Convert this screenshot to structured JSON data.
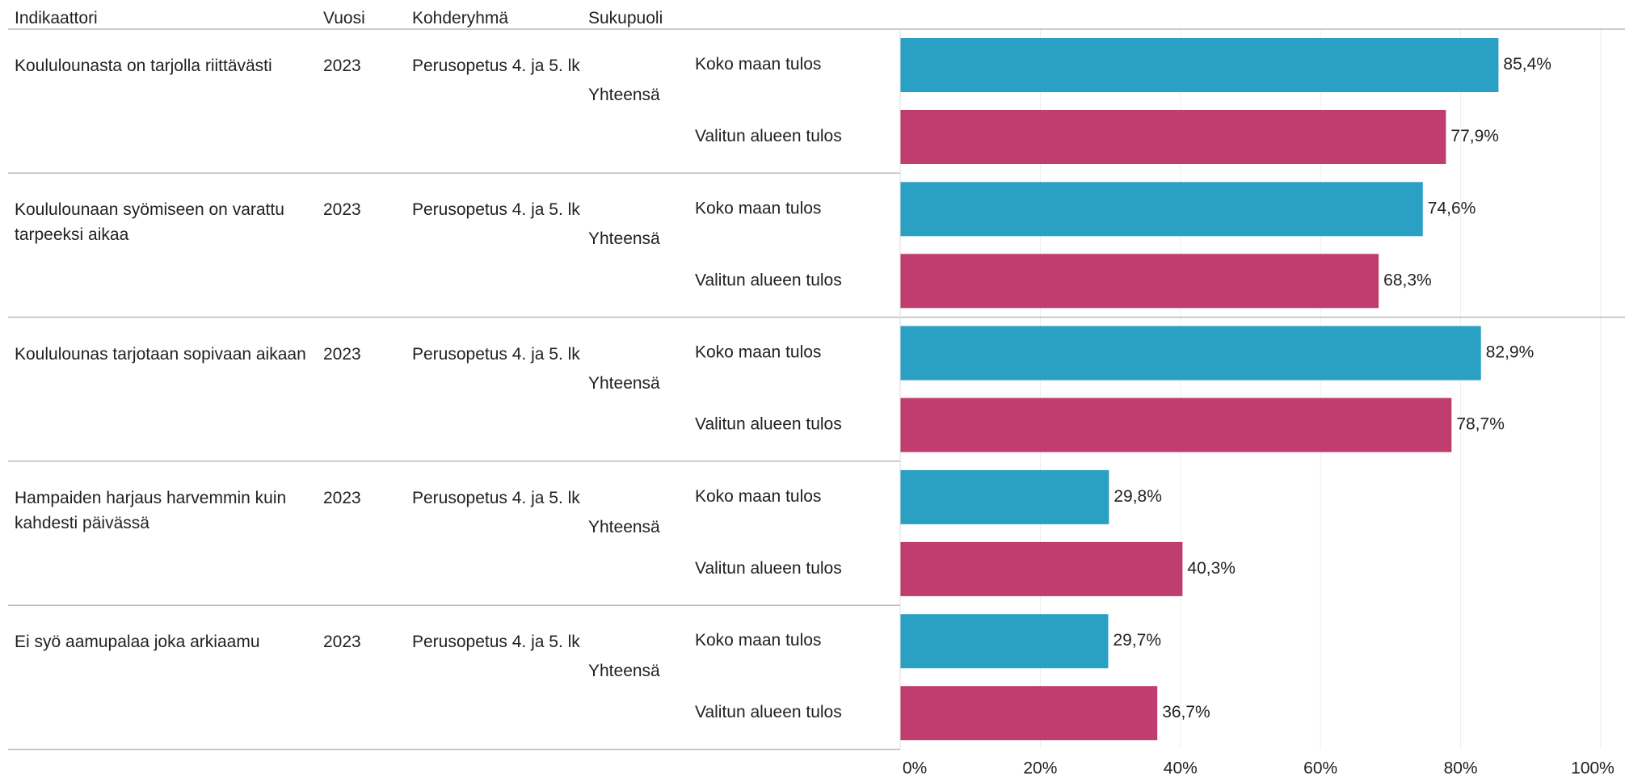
{
  "chart_data": {
    "type": "hbar",
    "column_headers": [
      "Indikaattori",
      "Vuosi",
      "Kohderyhmä",
      "Sukupuoli"
    ],
    "rows": [
      {
        "indicator": "Koululounasta on tarjolla riittävästi",
        "year": "2023",
        "target_group": "Perusopetus 4. ja 5. lk",
        "gender": "Yhteensä"
      },
      {
        "indicator": "Koululounaan syömiseen on varattu tarpeeksi aikaa",
        "year": "2023",
        "target_group": "Perusopetus 4. ja 5. lk",
        "gender": "Yhteensä"
      },
      {
        "indicator": "Koululounas tarjotaan sopivaan aikaan",
        "year": "2023",
        "target_group": "Perusopetus 4. ja 5. lk",
        "gender": "Yhteensä"
      },
      {
        "indicator": "Hampaiden harjaus harvemmin kuin kahdesti päivässä",
        "year": "2023",
        "target_group": "Perusopetus 4. ja 5. lk",
        "gender": "Yhteensä"
      },
      {
        "indicator": "Ei syö aamupalaa joka arkiaamu",
        "year": "2023",
        "target_group": "Perusopetus 4. ja 5. lk",
        "gender": "Yhteensä"
      }
    ],
    "series": [
      {
        "name": "Koko maan tulos",
        "color": "#2aa0c4",
        "values": [
          85.4,
          74.6,
          82.9,
          29.8,
          29.7
        ],
        "value_labels": [
          "85,4%",
          "74,6%",
          "82,9%",
          "29,8%",
          "29,7%"
        ]
      },
      {
        "name": "Valitun alueen tulos",
        "color": "#bf3d6f",
        "values": [
          77.9,
          68.3,
          78.7,
          40.3,
          36.7
        ],
        "value_labels": [
          "77,9%",
          "68,3%",
          "78,7%",
          "40,3%",
          "36,7%"
        ]
      }
    ],
    "xlim": [
      0,
      100
    ],
    "xticks": [
      {
        "value": 0,
        "label": "0%"
      },
      {
        "value": 20,
        "label": "20%"
      },
      {
        "value": 40,
        "label": "40%"
      },
      {
        "value": 60,
        "label": "60%"
      },
      {
        "value": 80,
        "label": "80%"
      },
      {
        "value": 100,
        "label": "100%"
      }
    ],
    "grid": true
  }
}
